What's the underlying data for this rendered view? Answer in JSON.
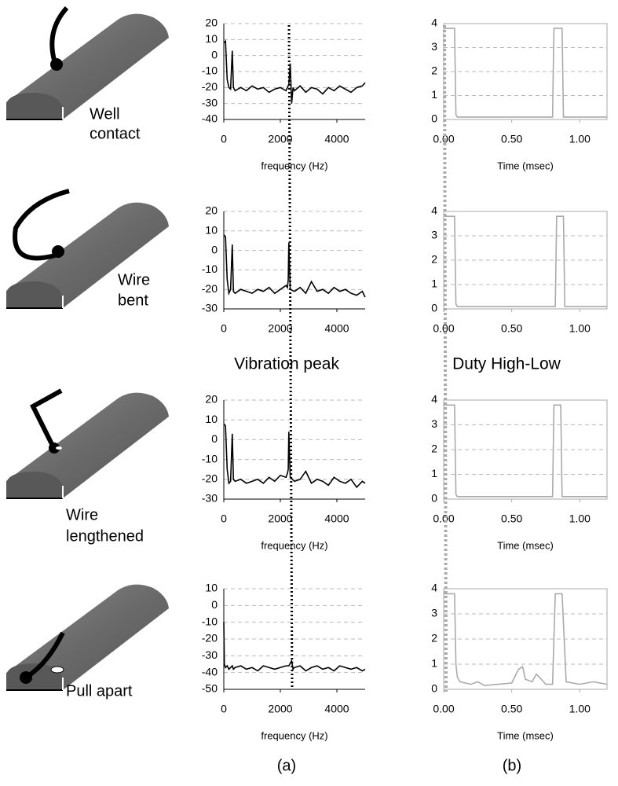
{
  "chart_data": [
    {
      "type": "line",
      "x": [
        0,
        60,
        120,
        180,
        240,
        300,
        340,
        400,
        600,
        800,
        1000,
        1200,
        1400,
        1600,
        1800,
        2000,
        2200,
        2300,
        2350,
        2400,
        2450,
        2500,
        2700,
        2900,
        3100,
        3300,
        3500,
        3700,
        3900,
        4100,
        4300,
        4500,
        4700,
        4900,
        5000
      ],
      "series": [
        {
          "color": "#000000",
          "values": [
            8,
            9,
            -15,
            -20,
            -21,
            3,
            -20,
            -22,
            -20,
            -22,
            -19,
            -21,
            -20,
            -23,
            -21,
            -20,
            -22,
            -18,
            -5,
            -30,
            -20,
            -22,
            -19,
            -23,
            -20,
            -21,
            -24,
            -20,
            -22,
            -19,
            -21,
            -23,
            -20,
            -19,
            -17
          ]
        }
      ],
      "xlim": [
        0,
        5000
      ],
      "ylim": [
        -40,
        20
      ],
      "xticks": [
        0,
        2000,
        4000
      ],
      "yticks": [
        20,
        10,
        0,
        -10,
        -20,
        -30,
        -40
      ],
      "grid": true,
      "xlabel": "frequency (Hz)"
    },
    {
      "type": "line",
      "x": [
        0,
        0.08,
        0.09,
        0.1,
        0.8,
        0.81,
        0.87,
        0.88,
        1.2
      ],
      "series": [
        {
          "color": "#aaaaaa",
          "values": [
            3.8,
            3.8,
            0.2,
            0.1,
            0.1,
            3.8,
            3.8,
            0.1,
            0.1
          ]
        }
      ],
      "xlim": [
        0,
        1.2
      ],
      "ylim": [
        0,
        4
      ],
      "xticks": [
        {
          "value": 0,
          "label": "0.00"
        },
        {
          "value": 0.5,
          "label": "0.50"
        },
        {
          "value": 1,
          "label": "1.00"
        }
      ],
      "yticks": [
        0,
        1,
        2,
        3,
        4
      ],
      "grid": true,
      "xlabel": "Time (msec)"
    },
    {
      "type": "line",
      "x": [
        0,
        60,
        120,
        180,
        240,
        300,
        340,
        400,
        600,
        800,
        1000,
        1200,
        1400,
        1600,
        1800,
        2000,
        2200,
        2250,
        2280,
        2300,
        2350,
        2500,
        2700,
        2900,
        3100,
        3300,
        3500,
        3700,
        3900,
        4100,
        4300,
        4500,
        4700,
        4900,
        5000
      ],
      "series": [
        {
          "color": "#000000",
          "values": [
            8,
            7,
            -15,
            -22,
            -20,
            3,
            -21,
            -22,
            -20,
            -21,
            -22,
            -20,
            -21,
            -19,
            -22,
            -20,
            -18,
            -19,
            -15,
            4,
            -20,
            -21,
            -19,
            -22,
            -16,
            -21,
            -20,
            -22,
            -19,
            -21,
            -20,
            -22,
            -23,
            -21,
            -24
          ]
        }
      ],
      "xlim": [
        0,
        5000
      ],
      "ylim": [
        -30,
        20
      ],
      "xticks": [
        0,
        2000,
        4000
      ],
      "yticks": [
        20,
        10,
        0,
        -10,
        -20,
        -30
      ],
      "grid": true
    },
    {
      "type": "line",
      "x": [
        0,
        0.08,
        0.09,
        0.1,
        0.82,
        0.83,
        0.88,
        0.89,
        1.2
      ],
      "series": [
        {
          "color": "#aaaaaa",
          "values": [
            3.8,
            3.8,
            0.2,
            0.1,
            0.1,
            3.8,
            3.8,
            0.1,
            0.1
          ]
        }
      ],
      "xlim": [
        0,
        1.2
      ],
      "ylim": [
        0,
        4
      ],
      "xticks": [
        {
          "value": 0,
          "label": "0.00"
        },
        {
          "value": 0.5,
          "label": "0.50"
        },
        {
          "value": 1,
          "label": "1.00"
        }
      ],
      "yticks": [
        0,
        1,
        2,
        3,
        4
      ],
      "grid": true
    },
    {
      "type": "line",
      "x": [
        0,
        60,
        120,
        180,
        240,
        300,
        340,
        400,
        600,
        800,
        1000,
        1200,
        1400,
        1600,
        1800,
        2000,
        2200,
        2250,
        2280,
        2300,
        2350,
        2500,
        2700,
        2900,
        3100,
        3300,
        3500,
        3700,
        3900,
        4100,
        4300,
        4500,
        4700,
        4900,
        5000
      ],
      "series": [
        {
          "color": "#000000",
          "values": [
            8,
            7,
            -15,
            -22,
            -21,
            3,
            -20,
            -21,
            -20,
            -22,
            -21,
            -20,
            -22,
            -19,
            -21,
            -18,
            -19,
            -17,
            -15,
            4,
            -19,
            -21,
            -20,
            -16,
            -22,
            -20,
            -21,
            -23,
            -19,
            -21,
            -22,
            -20,
            -24,
            -21,
            -22
          ]
        }
      ],
      "xlim": [
        0,
        5000
      ],
      "ylim": [
        -30,
        20
      ],
      "xticks": [
        0,
        2000,
        4000
      ],
      "yticks": [
        20,
        10,
        0,
        -10,
        -20,
        -30
      ],
      "grid": true,
      "xlabel": "frequency (Hz)"
    },
    {
      "type": "line",
      "x": [
        0,
        0.08,
        0.09,
        0.1,
        0.8,
        0.81,
        0.86,
        0.87,
        1.2
      ],
      "series": [
        {
          "color": "#aaaaaa",
          "values": [
            3.8,
            3.8,
            0.2,
            0.1,
            0.1,
            3.8,
            3.8,
            0.1,
            0.1
          ]
        }
      ],
      "xlim": [
        0,
        1.2
      ],
      "ylim": [
        0,
        4
      ],
      "xticks": [
        {
          "value": 0,
          "label": "0.00"
        },
        {
          "value": 0.5,
          "label": "0.50"
        },
        {
          "value": 1,
          "label": "1.00"
        }
      ],
      "yticks": [
        0,
        1,
        2,
        3,
        4
      ],
      "grid": true,
      "xlabel": "Time (msec)"
    },
    {
      "type": "line",
      "x": [
        0,
        20,
        60,
        120,
        180,
        240,
        300,
        340,
        400,
        600,
        800,
        1000,
        1200,
        1400,
        1600,
        1800,
        2000,
        2200,
        2300,
        2400,
        2450,
        2500,
        2700,
        2900,
        3100,
        3300,
        3500,
        3700,
        3900,
        4100,
        4300,
        4500,
        4700,
        4900,
        5000
      ],
      "series": [
        {
          "color": "#000000",
          "values": [
            -10,
            -35,
            -37,
            -36,
            -38,
            -37,
            -36,
            -38,
            -37,
            -36,
            -38,
            -37,
            -39,
            -36,
            -37,
            -38,
            -37,
            -36,
            -36,
            -33,
            -38,
            -37,
            -36,
            -39,
            -37,
            -36,
            -38,
            -37,
            -39,
            -36,
            -37,
            -38,
            -37,
            -39,
            -38
          ]
        }
      ],
      "xlim": [
        0,
        5000
      ],
      "ylim": [
        -50,
        10
      ],
      "xticks": [
        0,
        2000,
        4000
      ],
      "yticks": [
        10,
        0,
        -10,
        -20,
        -30,
        -40,
        -50
      ],
      "grid": true,
      "xlabel": "frequency (Hz)"
    },
    {
      "type": "line",
      "x": [
        0,
        0.08,
        0.09,
        0.1,
        0.12,
        0.2,
        0.25,
        0.3,
        0.4,
        0.5,
        0.55,
        0.58,
        0.6,
        0.65,
        0.68,
        0.7,
        0.75,
        0.8,
        0.82,
        0.87,
        0.9,
        1.0,
        1.1,
        1.2
      ],
      "series": [
        {
          "color": "#aaaaaa",
          "values": [
            3.8,
            3.8,
            1,
            0.5,
            0.3,
            0.2,
            0.3,
            0.15,
            0.2,
            0.25,
            0.8,
            0.9,
            0.4,
            0.3,
            0.6,
            0.5,
            0.2,
            0.2,
            3.8,
            3.8,
            0.3,
            0.2,
            0.3,
            0.2
          ]
        }
      ],
      "xlim": [
        0,
        1.2
      ],
      "ylim": [
        0,
        4
      ],
      "xticks": [
        {
          "value": 0,
          "label": "0.00"
        },
        {
          "value": 0.5,
          "label": "0.50"
        },
        {
          "value": 1,
          "label": "1.00"
        }
      ],
      "yticks": [
        0,
        1,
        2,
        3,
        4
      ],
      "grid": true,
      "xlabel": "Time (msec)"
    }
  ],
  "figure": {
    "labels": [
      [
        "Well",
        "contact"
      ],
      [
        "Wire",
        "bent"
      ],
      [
        "Wire",
        "lengthened"
      ],
      [
        "Pull apart"
      ]
    ],
    "annotations": [
      "Vibration peak",
      "Duty High-Low"
    ],
    "panel_labels": [
      "(a)",
      "(b)"
    ]
  }
}
